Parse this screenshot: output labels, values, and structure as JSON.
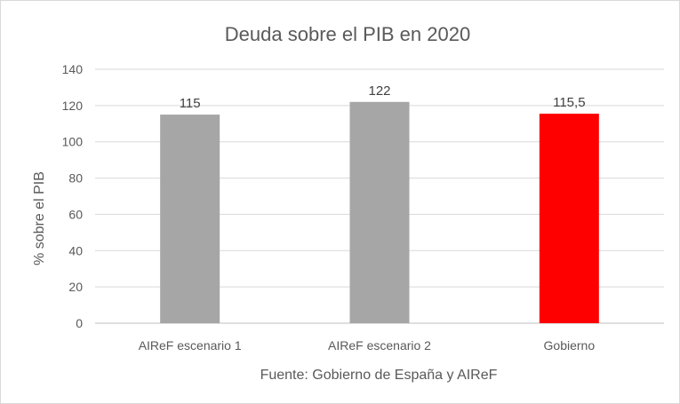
{
  "chart_data": {
    "type": "bar",
    "title": "Deuda sobre el PIB en 2020",
    "xlabel": "Fuente: Gobierno de España y AIReF",
    "ylabel": "% sobre el PIB",
    "ylim": [
      0,
      140
    ],
    "yticks": [
      0,
      20,
      40,
      60,
      80,
      100,
      120,
      140
    ],
    "grid": true,
    "categories": [
      "AIReF escenario 1",
      "AIReF escenario 2",
      "Gobierno"
    ],
    "values": [
      115,
      122,
      115.5
    ],
    "data_labels": [
      "115",
      "122",
      "115,5"
    ],
    "bar_colors": [
      "#a6a6a6",
      "#a6a6a6",
      "#ff0000"
    ],
    "gridline_color": "#d9d9d9",
    "axis_color": "#bfbfbf"
  }
}
